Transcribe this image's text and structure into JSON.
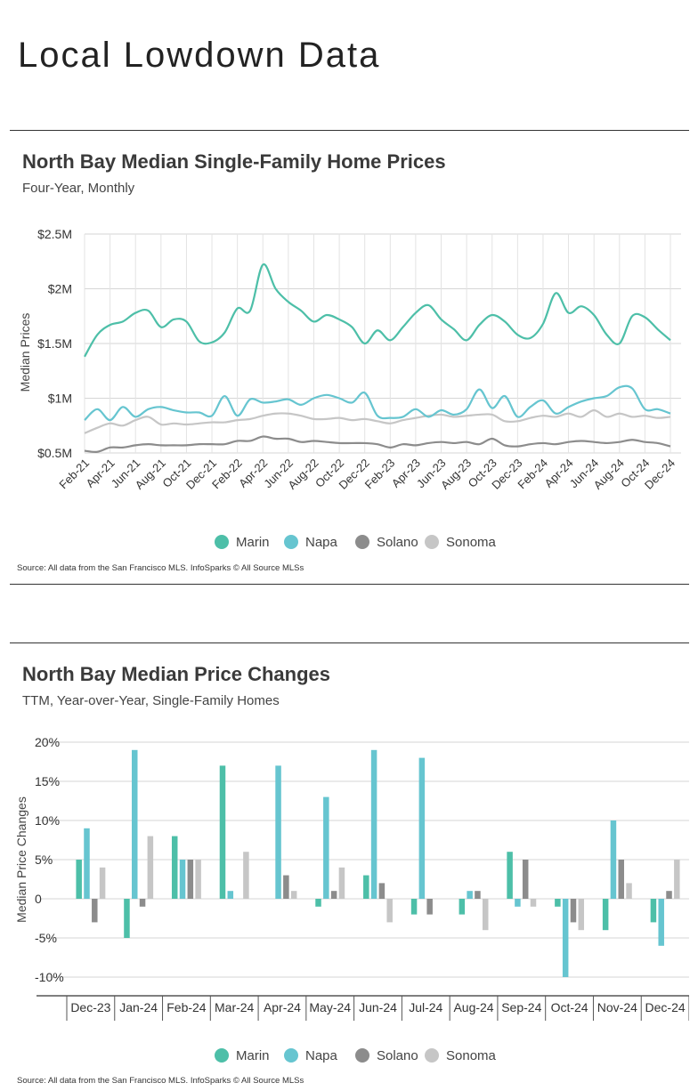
{
  "page": {
    "title": "Local Lowdown Data"
  },
  "colors": {
    "Marin": "#4dbfa8",
    "Napa": "#66c5d0",
    "Solano": "#8c8c8c",
    "Sonoma": "#c6c6c6"
  },
  "chart_data": [
    {
      "type": "line",
      "title": "North Bay Median Single-Family Home Prices",
      "subtitle": "Four-Year, Monthly",
      "ylabel": "Median Prices",
      "ylim": [
        0.5,
        2.5
      ],
      "yticks": [
        {
          "v": 2.5,
          "label": "$2.5M"
        },
        {
          "v": 2,
          "label": "$2M"
        },
        {
          "v": 1.5,
          "label": "$1.5M"
        },
        {
          "v": 1,
          "label": "$1M"
        },
        {
          "v": 0.5,
          "label": "$0.5M"
        }
      ],
      "x": [
        "Feb-21",
        "Mar-21",
        "Apr-21",
        "May-21",
        "Jun-21",
        "Jul-21",
        "Aug-21",
        "Sep-21",
        "Oct-21",
        "Nov-21",
        "Dec-21",
        "Jan-22",
        "Feb-22",
        "Mar-22",
        "Apr-22",
        "May-22",
        "Jun-22",
        "Jul-22",
        "Aug-22",
        "Sep-22",
        "Oct-22",
        "Nov-22",
        "Dec-22",
        "Jan-23",
        "Feb-23",
        "Mar-23",
        "Apr-23",
        "May-23",
        "Jun-23",
        "Jul-23",
        "Aug-23",
        "Sep-23",
        "Oct-23",
        "Nov-23",
        "Dec-23",
        "Jan-24",
        "Feb-24",
        "Mar-24",
        "Apr-24",
        "May-24",
        "Jun-24",
        "Jul-24",
        "Aug-24",
        "Sep-24",
        "Oct-24",
        "Nov-24",
        "Dec-24"
      ],
      "xtick_labels": [
        "Feb-21",
        "Apr-21",
        "Jun-21",
        "Aug-21",
        "Oct-21",
        "Dec-21",
        "Feb-22",
        "Apr-22",
        "Jun-22",
        "Aug-22",
        "Oct-22",
        "Dec-22",
        "Feb-23",
        "Apr-23",
        "Jun-23",
        "Aug-23",
        "Oct-23",
        "Dec-23",
        "Feb-24",
        "Apr-24",
        "Jun-24",
        "Aug-24",
        "Oct-24",
        "Dec-24"
      ],
      "series": [
        {
          "name": "Marin",
          "values": [
            1.38,
            1.58,
            1.67,
            1.7,
            1.78,
            1.8,
            1.65,
            1.72,
            1.7,
            1.52,
            1.51,
            1.6,
            1.82,
            1.8,
            2.22,
            2.0,
            1.88,
            1.8,
            1.7,
            1.76,
            1.72,
            1.65,
            1.5,
            1.62,
            1.53,
            1.65,
            1.78,
            1.85,
            1.72,
            1.63,
            1.53,
            1.67,
            1.76,
            1.7,
            1.58,
            1.55,
            1.68,
            1.96,
            1.78,
            1.84,
            1.76,
            1.58,
            1.5,
            1.75,
            1.74,
            1.63,
            1.53
          ]
        },
        {
          "name": "Napa",
          "values": [
            0.8,
            0.9,
            0.8,
            0.92,
            0.83,
            0.9,
            0.92,
            0.89,
            0.87,
            0.87,
            0.84,
            1.02,
            0.84,
            0.99,
            0.96,
            0.97,
            0.99,
            0.94,
            1.0,
            1.03,
            1.0,
            0.96,
            1.05,
            0.84,
            0.82,
            0.83,
            0.9,
            0.83,
            0.89,
            0.85,
            0.9,
            1.08,
            0.91,
            1.02,
            0.83,
            0.92,
            0.98,
            0.86,
            0.92,
            0.97,
            1.0,
            1.02,
            1.1,
            1.09,
            0.9,
            0.9,
            0.86
          ]
        },
        {
          "name": "Solano",
          "values": [
            0.52,
            0.51,
            0.55,
            0.55,
            0.57,
            0.58,
            0.57,
            0.57,
            0.57,
            0.58,
            0.58,
            0.58,
            0.61,
            0.61,
            0.65,
            0.63,
            0.63,
            0.6,
            0.61,
            0.6,
            0.59,
            0.59,
            0.59,
            0.58,
            0.55,
            0.58,
            0.57,
            0.59,
            0.6,
            0.59,
            0.6,
            0.58,
            0.63,
            0.57,
            0.56,
            0.58,
            0.59,
            0.58,
            0.6,
            0.61,
            0.6,
            0.59,
            0.6,
            0.62,
            0.6,
            0.59,
            0.56
          ]
        },
        {
          "name": "Sonoma",
          "values": [
            0.68,
            0.73,
            0.77,
            0.75,
            0.8,
            0.83,
            0.76,
            0.77,
            0.76,
            0.77,
            0.78,
            0.78,
            0.8,
            0.81,
            0.84,
            0.86,
            0.86,
            0.84,
            0.81,
            0.81,
            0.82,
            0.8,
            0.81,
            0.79,
            0.77,
            0.8,
            0.82,
            0.84,
            0.85,
            0.83,
            0.84,
            0.85,
            0.85,
            0.79,
            0.79,
            0.82,
            0.84,
            0.83,
            0.86,
            0.83,
            0.89,
            0.83,
            0.86,
            0.83,
            0.84,
            0.82,
            0.83
          ]
        }
      ],
      "legend": [
        "Marin",
        "Napa",
        "Solano",
        "Sonoma"
      ],
      "legend_position": "bottom",
      "grid": true,
      "source": "Source:  All data from the San Francisco MLS. InfoSparks © All Source MLSs"
    },
    {
      "type": "bar",
      "title": "North Bay Median Price Changes",
      "subtitle": "TTM, Year-over-Year, Single-Family Homes",
      "ylabel": "Median Price Changes",
      "ylim": [
        -10,
        20
      ],
      "yticks": [
        {
          "v": 20,
          "label": "20%"
        },
        {
          "v": 15,
          "label": "15%"
        },
        {
          "v": 10,
          "label": "10%"
        },
        {
          "v": 5,
          "label": "5%"
        },
        {
          "v": 0,
          "label": "0"
        },
        {
          "v": -5,
          "label": "-5%"
        },
        {
          "v": -10,
          "label": "-10%"
        }
      ],
      "categories": [
        "Dec-23",
        "Jan-24",
        "Feb-24",
        "Mar-24",
        "Apr-24",
        "May-24",
        "Jun-24",
        "Jul-24",
        "Aug-24",
        "Sep-24",
        "Oct-24",
        "Nov-24",
        "Dec-24"
      ],
      "series": [
        {
          "name": "Marin",
          "values": [
            5,
            -5,
            8,
            17,
            0,
            -1,
            3,
            -2,
            -2,
            6,
            -1,
            -4,
            -3
          ]
        },
        {
          "name": "Napa",
          "values": [
            9,
            19,
            5,
            1,
            17,
            13,
            19,
            18,
            1,
            -1,
            -10,
            10,
            -6
          ]
        },
        {
          "name": "Solano",
          "values": [
            -3,
            -1,
            5,
            0,
            3,
            1,
            2,
            -2,
            1,
            5,
            -3,
            5,
            1
          ]
        },
        {
          "name": "Sonoma",
          "values": [
            4,
            8,
            5,
            6,
            1,
            4,
            -3,
            0,
            -4,
            -1,
            -4,
            2,
            5
          ]
        }
      ],
      "legend": [
        "Marin",
        "Napa",
        "Solano",
        "Sonoma"
      ],
      "legend_position": "bottom",
      "grid": true,
      "source": "Source:  All data from the San Francisco MLS. InfoSparks © All Source MLSs"
    }
  ]
}
